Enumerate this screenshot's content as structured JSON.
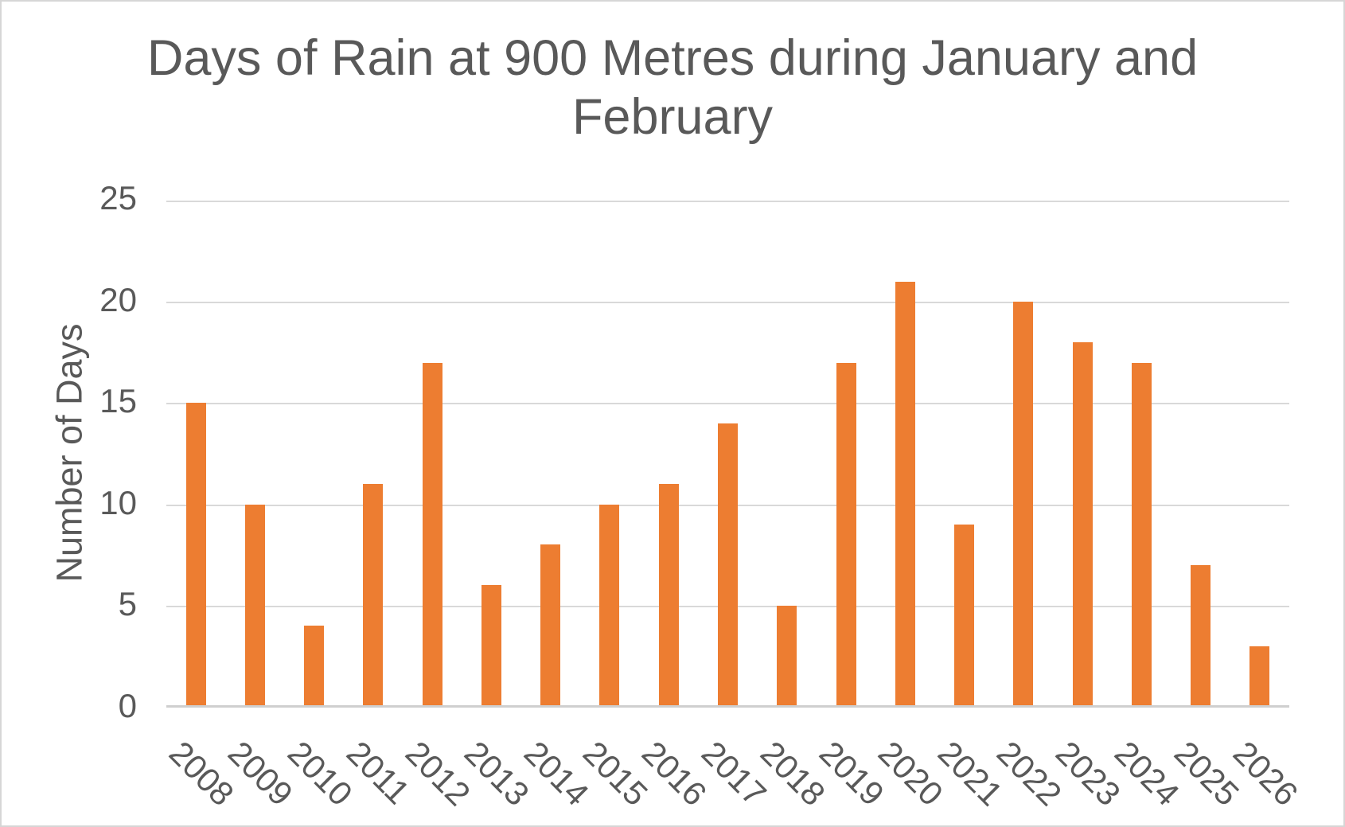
{
  "title_lines": [
    "Days of Rain at 900 Metres during January and",
    "February"
  ],
  "chart_data": {
    "type": "bar",
    "title": "Days of Rain at 900 Metres during January and February",
    "xlabel": "",
    "ylabel": "Number of Days",
    "categories": [
      "2008",
      "2009",
      "2010",
      "2011",
      "2012",
      "2013",
      "2014",
      "2015",
      "2016",
      "2017",
      "2018",
      "2019",
      "2020",
      "2021",
      "2022",
      "2023",
      "2024",
      "2025",
      "2026"
    ],
    "values": [
      15,
      10,
      4,
      11,
      17,
      6,
      8,
      10,
      11,
      14,
      5,
      17,
      21,
      9,
      20,
      18,
      17,
      7,
      3
    ],
    "ylim": [
      0,
      25
    ],
    "yticks": [
      0,
      5,
      10,
      15,
      20,
      25
    ],
    "grid": true,
    "legend": "none",
    "bar_color": "#ED7D31",
    "gridline_color": "#D9D9D9",
    "axis_line_color": "#CFCFCF",
    "text_color": "#595959"
  }
}
